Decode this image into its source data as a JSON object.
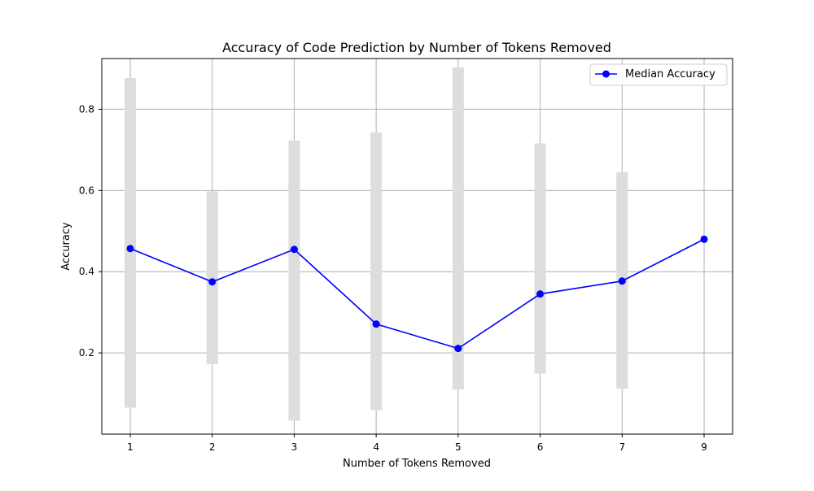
{
  "chart_data": {
    "type": "line",
    "title": "Accuracy of Code Prediction by Number of Tokens Removed",
    "xlabel": "Number of Tokens Removed",
    "ylabel": "Accuracy",
    "categories": [
      "1",
      "2",
      "3",
      "4",
      "5",
      "6",
      "7",
      "9"
    ],
    "series": [
      {
        "name": "Median Accuracy",
        "values": [
          0.457,
          0.375,
          0.455,
          0.271,
          0.211,
          0.345,
          0.377,
          0.48
        ],
        "color": "#0000ff"
      }
    ],
    "ranges": {
      "lower": [
        0.065,
        0.172,
        0.033,
        0.059,
        0.11,
        0.149,
        0.112,
        null
      ],
      "upper": [
        0.877,
        0.598,
        0.723,
        0.743,
        0.903,
        0.716,
        0.645,
        null
      ],
      "color": "#dddddd"
    },
    "ylim": [
      0.0,
      0.925
    ],
    "yticks": [
      0.2,
      0.4,
      0.6,
      0.8
    ],
    "ytick_labels": [
      "0.2",
      "0.4",
      "0.6",
      "0.8"
    ],
    "grid": true,
    "legend_position": "top-right"
  }
}
